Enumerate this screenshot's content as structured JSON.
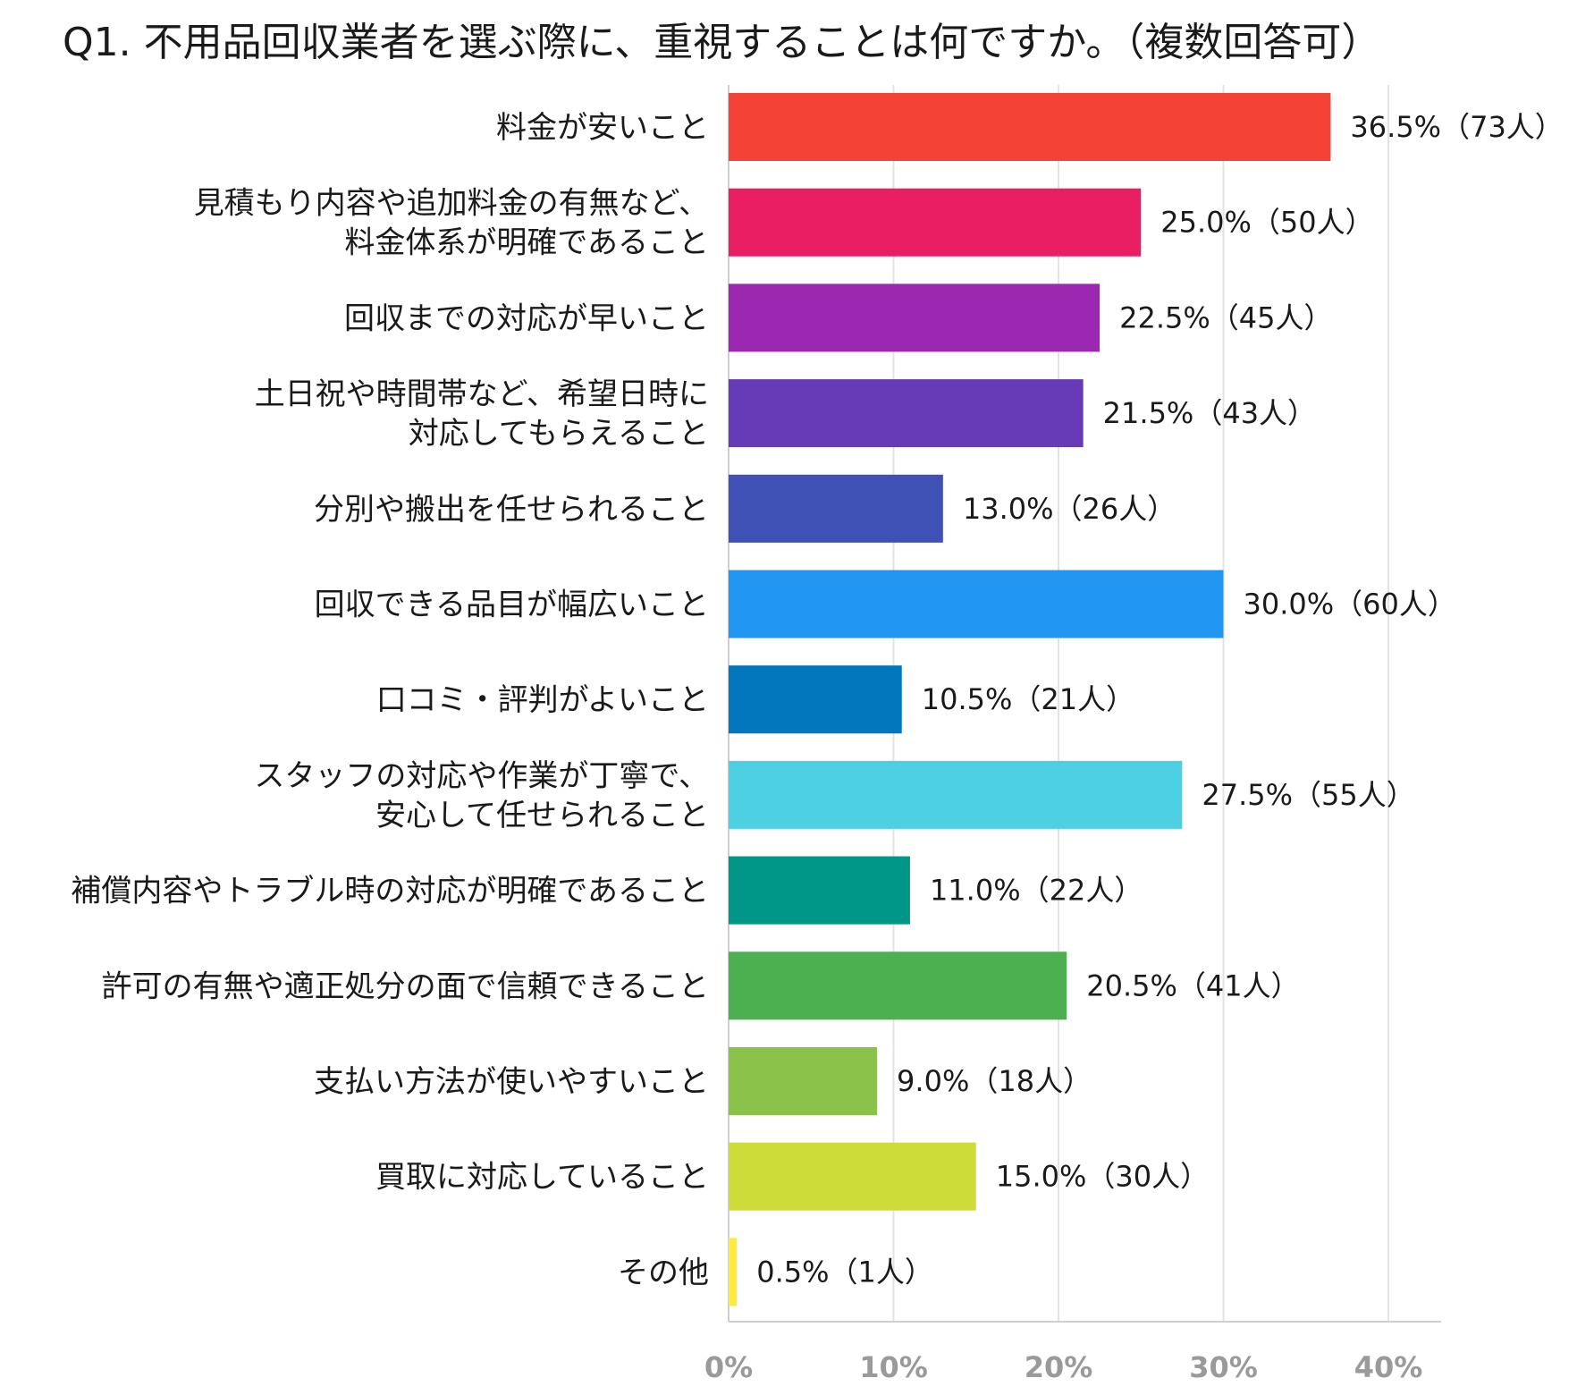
{
  "chart_data": {
    "type": "bar",
    "orientation": "horizontal",
    "title": "Q1. 不用品回収業者を選ぶ際に、重視することは何ですか。（複数回答可）",
    "xlabel": "",
    "ylabel": "",
    "xlim": [
      0,
      43
    ],
    "ticks": [
      0,
      10,
      20,
      30,
      40
    ],
    "tick_labels": [
      "0%",
      "10%",
      "20%",
      "30%",
      "40%"
    ],
    "grid": true,
    "legend": "none",
    "categories": [
      [
        "料金が安いこと"
      ],
      [
        "見積もり内容や追加料金の有無など、",
        "料金体系が明確であること"
      ],
      [
        "回収までの対応が早いこと"
      ],
      [
        "土日祝や時間帯など、希望日時に",
        "対応してもらえること"
      ],
      [
        "分別や搬出を任せられること"
      ],
      [
        "回収できる品目が幅広いこと"
      ],
      [
        "口コミ・評判がよいこと"
      ],
      [
        "スタッフの対応や作業が丁寧で、",
        "安心して任せられること"
      ],
      [
        "補償内容やトラブル時の対応が明確であること"
      ],
      [
        "許可の有無や適正処分の面で信頼できること"
      ],
      [
        "支払い方法が使いやすいこと"
      ],
      [
        "買取に対応していること"
      ],
      [
        "その他"
      ]
    ],
    "values": [
      36.5,
      25.0,
      22.5,
      21.5,
      13.0,
      30.0,
      10.5,
      27.5,
      11.0,
      20.5,
      9.0,
      15.0,
      0.5
    ],
    "value_labels": [
      "36.5%（73人）",
      "25.0%（50人）",
      "22.5%（45人）",
      "21.5%（43人）",
      "13.0%（26人）",
      "30.0%（60人）",
      "10.5%（21人）",
      "27.5%（55人）",
      "11.0%（22人）",
      "20.5%（41人）",
      "9.0%（18人）",
      "15.0%（30人）",
      "0.5%（1人）"
    ],
    "colors": [
      "#f44336",
      "#e91e63",
      "#9c27b0",
      "#673ab7",
      "#3f51b5",
      "#2196f3",
      "#0277bd",
      "#4dd0e1",
      "#009688",
      "#4caf50",
      "#8bc34a",
      "#cddc39",
      "#ffeb3b"
    ]
  }
}
